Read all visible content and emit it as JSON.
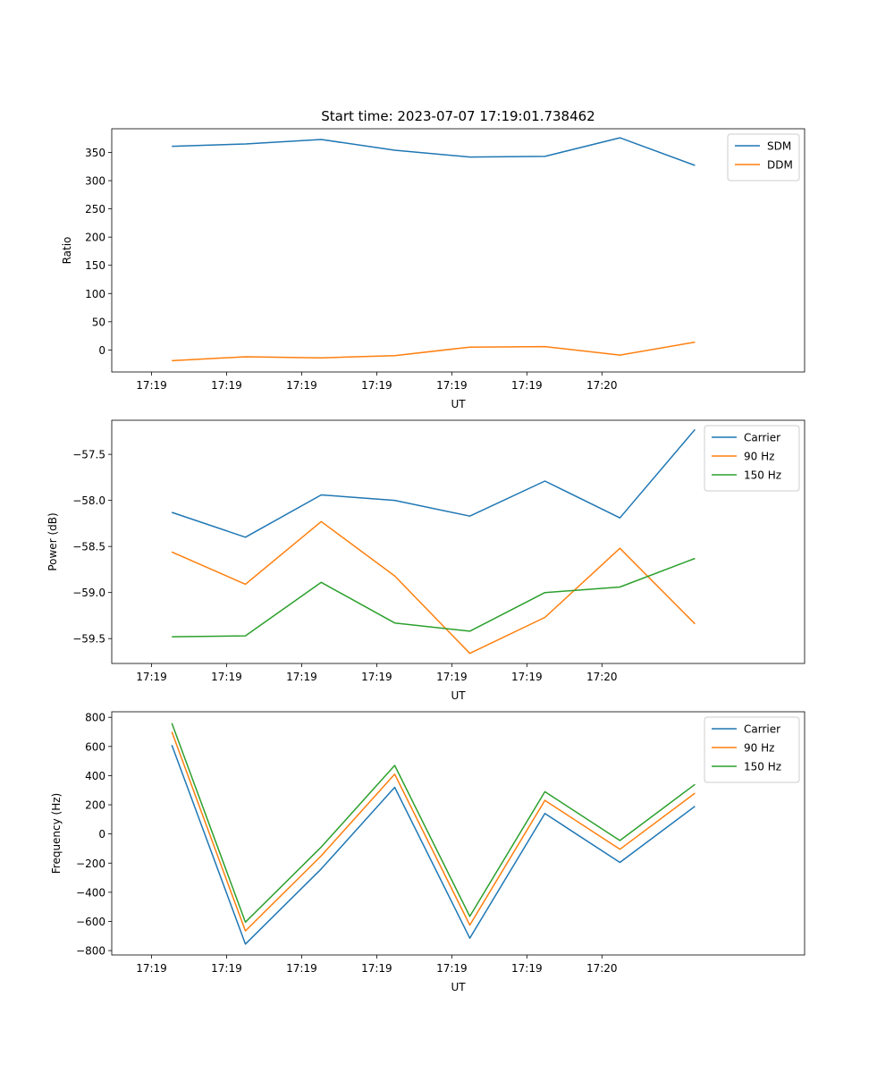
{
  "chart_data": [
    {
      "type": "line",
      "title": "Start time: 2023-07-07 17:19:01.738462",
      "xlabel": "UT",
      "ylabel": "Ratio",
      "x_tick_labels": [
        "17:19",
        "17:19",
        "17:19",
        "17:19",
        "17:19",
        "17:19",
        "17:20"
      ],
      "xlim": [
        -0.53,
        8.7
      ],
      "ylim": [
        -39,
        392
      ],
      "y_ticks": [
        0,
        50,
        100,
        150,
        200,
        250,
        300,
        350
      ],
      "y_tick_labels": [
        "0",
        "50",
        "100",
        "150",
        "200",
        "250",
        "300",
        "350"
      ],
      "x": [
        0.27,
        1.25,
        2.26,
        3.24,
        4.24,
        5.24,
        6.24,
        7.24
      ],
      "series": [
        {
          "name": "SDM",
          "color": "#1f77b4",
          "values": [
            361,
            365,
            373,
            354,
            342,
            343,
            376,
            327
          ]
        },
        {
          "name": "DDM",
          "color": "#ff7f0e",
          "values": [
            -19,
            -12,
            -14,
            -10,
            5,
            6,
            -9,
            14
          ]
        }
      ],
      "legend": "top-right"
    },
    {
      "type": "line",
      "title": "",
      "xlabel": "UT",
      "ylabel": "Power (dB)",
      "x_tick_labels": [
        "17:19",
        "17:19",
        "17:19",
        "17:19",
        "17:19",
        "17:19",
        "17:20"
      ],
      "xlim": [
        -0.53,
        8.7
      ],
      "ylim": [
        -59.77,
        -57.13
      ],
      "y_ticks": [
        -57.5,
        -58.0,
        -58.5,
        -59.0,
        -59.5
      ],
      "y_tick_labels": [
        "−57.5",
        "−58.0",
        "−58.5",
        "−59.0",
        "−59.5"
      ],
      "x": [
        0.27,
        1.25,
        2.26,
        3.24,
        4.24,
        5.24,
        6.24,
        7.24
      ],
      "series": [
        {
          "name": "Carrier",
          "color": "#1f77b4",
          "values": [
            -58.13,
            -58.4,
            -57.94,
            -58.0,
            -58.17,
            -57.79,
            -58.19,
            -57.23
          ]
        },
        {
          "name": "90 Hz",
          "color": "#ff7f0e",
          "values": [
            -58.56,
            -58.91,
            -58.23,
            -58.82,
            -59.66,
            -59.27,
            -58.52,
            -59.34
          ]
        },
        {
          "name": "150 Hz",
          "color": "#2ca02c",
          "values": [
            -59.48,
            -59.47,
            -58.89,
            -59.33,
            -59.42,
            -59.0,
            -58.94,
            -58.63
          ]
        }
      ],
      "legend": "top-right"
    },
    {
      "type": "line",
      "title": "",
      "xlabel": "UT",
      "ylabel": "Frequency (Hz)",
      "x_tick_labels": [
        "17:19",
        "17:19",
        "17:19",
        "17:19",
        "17:19",
        "17:19",
        "17:20"
      ],
      "xlim": [
        -0.53,
        8.7
      ],
      "ylim": [
        -830,
        838
      ],
      "y_ticks": [
        800,
        600,
        400,
        200,
        0,
        -200,
        -400,
        -600,
        -800
      ],
      "y_tick_labels": [
        "800",
        "600",
        "400",
        "200",
        "0",
        "−200",
        "−400",
        "−600",
        "−800"
      ],
      "x": [
        0.27,
        1.25,
        2.26,
        3.24,
        4.24,
        5.24,
        6.24,
        7.24
      ],
      "series": [
        {
          "name": "Carrier",
          "color": "#1f77b4",
          "values": [
            610,
            -755,
            -240,
            320,
            -715,
            140,
            -195,
            190
          ]
        },
        {
          "name": "90 Hz",
          "color": "#ff7f0e",
          "values": [
            700,
            -665,
            -150,
            410,
            -625,
            230,
            -105,
            280
          ]
        },
        {
          "name": "150 Hz",
          "color": "#2ca02c",
          "values": [
            760,
            -605,
            -90,
            470,
            -565,
            290,
            -45,
            340
          ]
        }
      ],
      "legend": "top-right"
    }
  ]
}
